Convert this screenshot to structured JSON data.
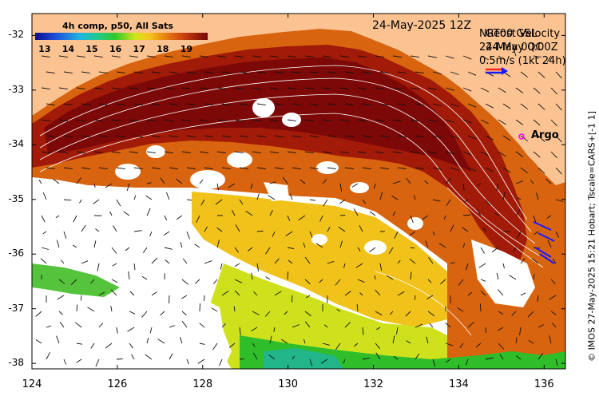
{
  "map": {
    "date": "24-May-2025 12Z",
    "colorbar": {
      "title": "4h comp, p50, All Sats",
      "ticks": [
        "13",
        "14",
        "15",
        "16",
        "17",
        "18",
        "19"
      ],
      "min": 12.6,
      "max": 19.9
    },
    "velocity_legend": {
      "line1_a": "NRT00 GSL",
      "line1_b": "Geost Velocity",
      "line2_a": "24-May 00:00Z",
      "line2_b": "24-May QC",
      "scale": "0.5m/s (1kt 24h)"
    },
    "argo_label": "Argo",
    "credit": "© IMOS 27-May-2025 15:21 Hobart; Tscale=CARS+[-1 1]",
    "lat_ticks": [
      "-32",
      "-33",
      "-34",
      "-35",
      "-36",
      "-37",
      "-38"
    ],
    "lon_ticks": [
      "124",
      "126",
      "128",
      "130",
      "132",
      "134",
      "136"
    ],
    "lat_range": [
      -31.6,
      -38.1
    ],
    "lon_range": [
      124.0,
      136.5
    ],
    "colors": {
      "land": "#fbc392",
      "no_data": "#ffffff",
      "vector": "#111111",
      "vector_qc": "#1a1aff",
      "contour": "#ffffff",
      "argo": "#ff00ff"
    }
  }
}
